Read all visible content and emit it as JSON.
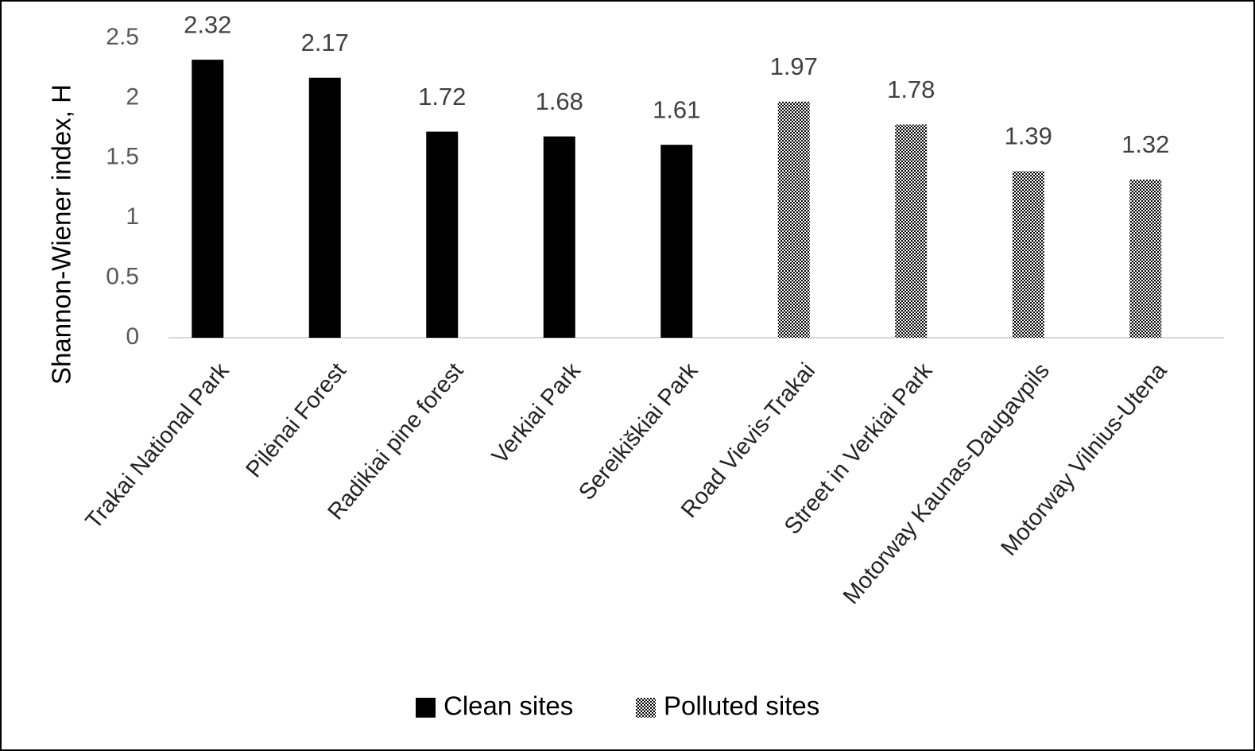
{
  "chart_data": {
    "type": "bar",
    "y_label": "Shannon-Wiener index, H",
    "categories": [
      "Trakai National Park",
      "Pilėnai Forest",
      "Radikiai pine forest",
      "Verkiai Park",
      "Sereikiškiai Park",
      "Road Vievis-Trakai",
      "Street in Verkiai Park",
      "Motorway Kaunas-Daugavpils",
      "Motorway Vilnius-Utena"
    ],
    "series": [
      {
        "name": "Clean sites",
        "color": "#000000",
        "values": [
          2.32,
          2.17,
          1.72,
          1.68,
          1.61,
          null,
          null,
          null,
          null
        ]
      },
      {
        "name": "Polluted sites",
        "color": "#000000",
        "pattern": "checker",
        "values": [
          null,
          null,
          null,
          null,
          null,
          1.97,
          1.78,
          1.39,
          1.32
        ]
      }
    ],
    "ylim": [
      0,
      2.5
    ],
    "yticks": [
      0,
      0.5,
      1,
      1.5,
      2,
      2.5
    ],
    "grid": false,
    "legend": "bottom"
  }
}
